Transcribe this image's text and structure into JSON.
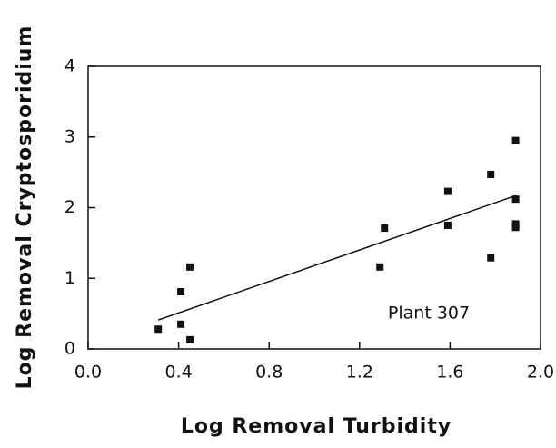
{
  "chart_data": {
    "type": "scatter",
    "x_label": "Log Removal Turbidity",
    "y_label": "Log Removal Cryptosporidium",
    "annotation": "Plant 307",
    "x": [
      0.31,
      0.41,
      0.41,
      0.45,
      0.45,
      1.29,
      1.31,
      1.59,
      1.59,
      1.78,
      1.78,
      1.89,
      1.89,
      1.89,
      1.89
    ],
    "values": [
      0.28,
      0.81,
      0.35,
      1.16,
      0.13,
      1.16,
      1.71,
      2.23,
      1.75,
      2.47,
      1.29,
      2.95,
      2.12,
      1.77,
      1.72
    ],
    "color": "#111111",
    "trend_line": {
      "x": [
        0.31,
        1.89
      ],
      "y": [
        0.41,
        2.17
      ]
    },
    "xlim": [
      0,
      2
    ],
    "ylim": [
      0,
      4
    ],
    "xticks": [
      {
        "value": 0,
        "label": "0.0"
      },
      {
        "value": 0.4,
        "label": "0.4"
      },
      {
        "value": 0.8,
        "label": "0.8"
      },
      {
        "value": 1.2,
        "label": "1.2"
      },
      {
        "value": 1.6,
        "label": "1.6"
      },
      {
        "value": 2,
        "label": "2.0"
      }
    ],
    "yticks": [
      0,
      1,
      2,
      3,
      4
    ]
  }
}
